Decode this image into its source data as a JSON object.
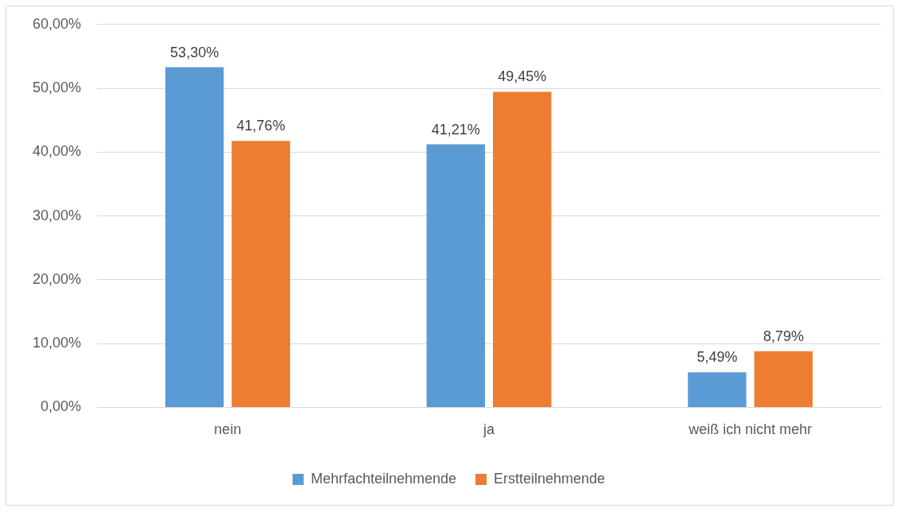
{
  "chart_data": {
    "type": "bar",
    "categories": [
      "nein",
      "ja",
      "weiß ich nicht mehr"
    ],
    "series": [
      {
        "name": "Mehrfachteilnehmende",
        "color": "#5b9bd5",
        "values": [
          53.3,
          41.21,
          5.49
        ],
        "value_labels": [
          "53,30%",
          "41,21%",
          "5,49%"
        ]
      },
      {
        "name": "Erstteilnehmende",
        "color": "#ed7d31",
        "values": [
          41.76,
          49.45,
          8.79
        ],
        "value_labels": [
          "41,76%",
          "49,45%",
          "8,79%"
        ]
      }
    ],
    "ylim": [
      0,
      60
    ],
    "yticks": [
      {
        "value": 0,
        "label": "0,00%"
      },
      {
        "value": 10,
        "label": "10,00%"
      },
      {
        "value": 20,
        "label": "20,00%"
      },
      {
        "value": 30,
        "label": "30,00%"
      },
      {
        "value": 40,
        "label": "40,00%"
      },
      {
        "value": 50,
        "label": "50,00%"
      },
      {
        "value": 60,
        "label": "60,00%"
      }
    ],
    "grid": "y",
    "legend": "bottom"
  }
}
